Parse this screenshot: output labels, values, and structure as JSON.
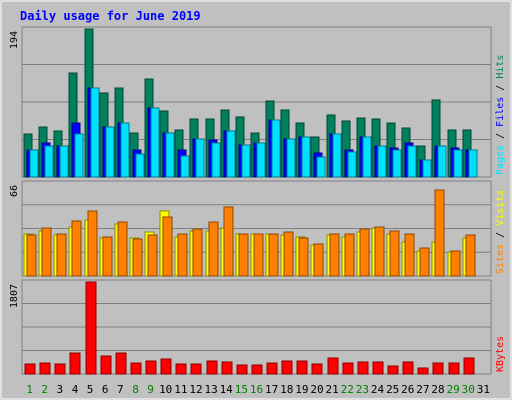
{
  "chart_data": [
    {
      "type": "bar",
      "title": "Daily usage for June 2019",
      "categories": [
        "1",
        "2",
        "3",
        "4",
        "5",
        "6",
        "7",
        "8",
        "9",
        "10",
        "11",
        "12",
        "13",
        "14",
        "15",
        "16",
        "17",
        "18",
        "19",
        "20",
        "21",
        "22",
        "23",
        "24",
        "25",
        "26",
        "27",
        "28",
        "29",
        "30",
        "31"
      ],
      "y_label_max": "194",
      "legend": [
        "Pages",
        "Files",
        "Hits"
      ],
      "ylim": [
        0,
        194
      ],
      "series": [
        {
          "name": "Hits",
          "values": [
            57,
            66,
            60,
            136,
            194,
            110,
            117,
            58,
            129,
            86,
            61,
            76,
            76,
            88,
            78,
            58,
            100,
            88,
            71,
            52,
            81,
            73,
            77,
            76,
            71,
            64,
            41,
            101,
            61,
            62,
            0
          ]
        },
        {
          "name": "Files",
          "values": [
            36,
            44,
            40,
            71,
            117,
            65,
            71,
            36,
            91,
            58,
            36,
            50,
            48,
            60,
            42,
            44,
            75,
            50,
            52,
            31,
            56,
            36,
            52,
            40,
            38,
            45,
            22,
            40,
            38,
            36,
            0
          ]
        },
        {
          "name": "Pages",
          "values": [
            36,
            40,
            40,
            56,
            117,
            65,
            71,
            30,
            91,
            58,
            28,
            50,
            45,
            60,
            42,
            44,
            75,
            50,
            52,
            26,
            56,
            33,
            52,
            40,
            35,
            40,
            22,
            40,
            36,
            36,
            0
          ]
        }
      ]
    },
    {
      "type": "bar",
      "categories": [
        "1",
        "2",
        "3",
        "4",
        "5",
        "6",
        "7",
        "8",
        "9",
        "10",
        "11",
        "12",
        "13",
        "14",
        "15",
        "16",
        "17",
        "18",
        "19",
        "20",
        "21",
        "22",
        "23",
        "24",
        "25",
        "26",
        "27",
        "28",
        "29",
        "30",
        "31"
      ],
      "y_label_max": "66",
      "legend": [
        "Sites",
        "Visits"
      ],
      "ylim": [
        0,
        66
      ],
      "series": [
        {
          "name": "Visits",
          "values": [
            30,
            32,
            29,
            35,
            40,
            27,
            37,
            27,
            31,
            46,
            28,
            32,
            32,
            34,
            30,
            30,
            30,
            29,
            28,
            22,
            29,
            28,
            31,
            34,
            30,
            24,
            18,
            24,
            17,
            27,
            0
          ]
        },
        {
          "name": "Sites",
          "values": [
            29,
            34,
            30,
            39,
            46,
            28,
            38,
            26,
            29,
            42,
            30,
            33,
            38,
            49,
            30,
            30,
            30,
            31,
            27,
            23,
            30,
            30,
            33,
            35,
            32,
            30,
            20,
            61,
            18,
            29,
            0
          ]
        }
      ]
    },
    {
      "type": "bar",
      "categories": [
        "1",
        "2",
        "3",
        "4",
        "5",
        "6",
        "7",
        "8",
        "9",
        "10",
        "11",
        "12",
        "13",
        "14",
        "15",
        "16",
        "17",
        "18",
        "19",
        "20",
        "21",
        "22",
        "23",
        "24",
        "25",
        "26",
        "27",
        "28",
        "29",
        "30",
        "31"
      ],
      "y_label_max": "1807",
      "legend": [
        "KBytes"
      ],
      "ylim": [
        0,
        1807
      ],
      "series": [
        {
          "name": "KBytes",
          "values": [
            193,
            212,
            193,
            410,
            1807,
            347,
            410,
            207,
            262,
            290,
            193,
            193,
            248,
            227,
            180,
            180,
            207,
            252,
            252,
            193,
            310,
            207,
            227,
            227,
            166,
            227,
            124,
            207,
            207,
            310,
            0
          ]
        }
      ]
    }
  ],
  "weekend_days": [
    "1",
    "2",
    "8",
    "9",
    "15",
    "16",
    "22",
    "23",
    "29",
    "30"
  ],
  "colors": {
    "background": "#c0c0c0",
    "title": "#0000ff",
    "hits": "#00805c",
    "files": "#0000ff",
    "pages": "#00e0ff",
    "visits": "#ffff00",
    "sites": "#ff8000",
    "kbytes": "#ff0000",
    "weekend_label": "#008000",
    "weekday_label": "#000000"
  }
}
